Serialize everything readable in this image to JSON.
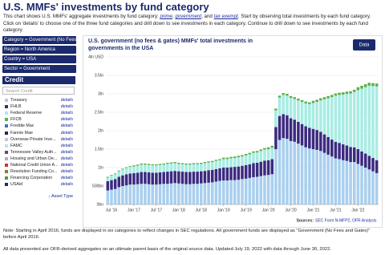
{
  "header": {
    "title": "U.S. MMFs' investments by fund category",
    "intro": [
      "This chart shows U.S. MMFs' aggregate investments by fund category: ",
      "prime",
      ", ",
      "government",
      ", and ",
      "tax exempt",
      ". Start by observing total investments by each fund category. Click on 'details' to choose one of the three fund categories and drill down to see investments in each category. Continue to drill down to see investments by each fund category."
    ]
  },
  "filters": [
    "Category = Government (No Fees and Gates)",
    "Region = North America",
    "Country = USA",
    "Sector = Government"
  ],
  "panel": {
    "title": "Credit",
    "search": "Search Credit",
    "footer": "↓ Asset Type",
    "items": [
      {
        "label": "Treasury",
        "link": "details",
        "color": "#a9cfee"
      },
      {
        "label": "FHLB",
        "link": "details",
        "color": "#3b2a80"
      },
      {
        "label": "Federal Reserve",
        "link": "details",
        "color": "#a8ece4"
      },
      {
        "label": "FFCB",
        "link": "details",
        "color": "#5bb04a"
      },
      {
        "label": "Freddie Mac",
        "link": "details",
        "color": "#3d6fc4"
      },
      {
        "label": "Fannie Mae",
        "link": "details",
        "color": "#1d2a5a"
      },
      {
        "label": "Overseas Private Inve...",
        "link": "details",
        "color": "#c9c9c9"
      },
      {
        "label": "FAMC",
        "link": "details",
        "color": "#bfe0f5"
      },
      {
        "label": "Tennessee Valley Auth...",
        "link": "details",
        "color": "#7a3a8a"
      },
      {
        "label": "Housing and Urban De...",
        "link": "details",
        "color": "#b8a8d8"
      },
      {
        "label": "National Credit Union A...",
        "link": "details",
        "color": "#d03030"
      },
      {
        "label": "Resolution Funding Co...",
        "link": "details",
        "color": "#8a7a2a"
      },
      {
        "label": "Financing Corporation",
        "link": "details",
        "color": "#4a9a4a"
      },
      {
        "label": "USAid",
        "link": "details",
        "color": "#1a2a80"
      }
    ]
  },
  "chart_data": {
    "type": "stacked-bar",
    "title": "U.S. government (no fees & gates) MMFs' total investments in governments in the USA",
    "button": "Data",
    "sources_label": "Sources:",
    "sources": "SEC Form N-MFP2, OFR Analysis",
    "categories": [
      null,
      "Jul '16",
      null,
      null,
      null,
      null,
      null,
      "Jan '17",
      null,
      null,
      null,
      null,
      null,
      "Jul '17",
      null,
      null,
      null,
      null,
      null,
      "Jan '18",
      null,
      null,
      null,
      null,
      null,
      "Jul '18",
      null,
      null,
      null,
      null,
      null,
      "Jan '19",
      null,
      null,
      null,
      null,
      null,
      "Jul '19",
      null,
      null,
      null,
      null,
      null,
      "Jan '20",
      null,
      null,
      null,
      null,
      null,
      "Jul '20",
      null,
      null,
      null,
      null,
      null,
      "Jan '21",
      null,
      null,
      null,
      null,
      null,
      "Jul '21",
      null,
      null,
      null,
      null,
      null,
      "Jan '22",
      null,
      null,
      null,
      null,
      null
    ],
    "ylim": [
      0,
      4000
    ],
    "yticks": [
      {
        "value": 0,
        "label": "0bn"
      },
      {
        "value": 500,
        "label": "500bn"
      },
      {
        "value": 1000,
        "label": "1tn"
      },
      {
        "value": 1500,
        "label": "1.5tn"
      },
      {
        "value": 2000,
        "label": "2tn"
      },
      {
        "value": 2500,
        "label": "2.5tn"
      },
      {
        "value": 3000,
        "label": "3tn"
      },
      {
        "value": 3500,
        "label": "3.5tn"
      },
      {
        "value": 4000,
        "label": "4tn USD"
      }
    ],
    "grid": true,
    "series": [
      {
        "name": "Treasury",
        "color": "#a9cfee",
        "values": [
          380,
          400,
          420,
          470,
          500,
          520,
          540,
          540,
          550,
          560,
          560,
          550,
          540,
          540,
          550,
          560,
          560,
          570,
          580,
          570,
          560,
          550,
          550,
          560,
          560,
          570,
          580,
          590,
          600,
          620,
          640,
          650,
          650,
          660,
          660,
          670,
          690,
          700,
          720,
          740,
          750,
          770,
          790,
          800,
          820,
          1500,
          1750,
          1800,
          1780,
          1720,
          1700,
          1650,
          1600,
          1550,
          1520,
          1500,
          1480,
          1450,
          1400,
          1350,
          1300,
          1250,
          1230,
          1200,
          1180,
          1150,
          1150,
          1100,
          1050,
          1000,
          950,
          900,
          850
        ]
      },
      {
        "name": "FHLB",
        "color": "#3b2a80",
        "values": [
          250,
          260,
          270,
          280,
          290,
          300,
          300,
          310,
          310,
          320,
          320,
          320,
          320,
          320,
          320,
          320,
          330,
          330,
          330,
          330,
          330,
          330,
          330,
          330,
          330,
          330,
          330,
          340,
          340,
          340,
          340,
          350,
          350,
          350,
          360,
          360,
          360,
          370,
          370,
          380,
          380,
          390,
          400,
          400,
          410,
          600,
          650,
          650,
          640,
          620,
          600,
          590,
          580,
          570,
          560,
          550,
          540,
          520,
          500,
          480,
          460,
          450,
          440,
          430,
          420,
          410,
          400,
          400,
          390,
          380,
          370,
          360,
          350
        ]
      },
      {
        "name": "Federal Reserve",
        "color": "#a8ece4",
        "values": [
          100,
          120,
          130,
          150,
          160,
          170,
          180,
          180,
          190,
          200,
          200,
          200,
          200,
          200,
          200,
          200,
          210,
          210,
          210,
          200,
          200,
          200,
          200,
          200,
          200,
          200,
          210,
          210,
          210,
          220,
          220,
          230,
          230,
          240,
          240,
          250,
          250,
          260,
          270,
          280,
          280,
          290,
          300,
          300,
          310,
          450,
          500,
          520,
          530,
          550,
          560,
          580,
          600,
          620,
          640,
          700,
          760,
          850,
          950,
          1050,
          1150,
          1250,
          1300,
          1350,
          1400,
          1450,
          1500,
          1600,
          1700,
          1800,
          1900,
          1950,
          2000
        ]
      },
      {
        "name": "FFCB",
        "color": "#5bb04a",
        "values": [
          20,
          20,
          20,
          20,
          20,
          20,
          20,
          30,
          30,
          30,
          30,
          30,
          30,
          30,
          30,
          30,
          30,
          30,
          30,
          30,
          30,
          30,
          30,
          30,
          30,
          30,
          30,
          30,
          30,
          30,
          30,
          40,
          40,
          40,
          40,
          40,
          40,
          40,
          40,
          40,
          40,
          40,
          40,
          50,
          50,
          50,
          50,
          50,
          50,
          50,
          50,
          50,
          50,
          50,
          50,
          60,
          60,
          60,
          60,
          60,
          60,
          60,
          60,
          60,
          60,
          60,
          60,
          80,
          80,
          80,
          80,
          80,
          80
        ]
      }
    ]
  },
  "notes": [
    "Note: Starting in April 2016, funds are displayed in six categories to reflect changes in SEC regulations. All government funds are displayed as \"Government (No Fees and Gates)\" before April 2016.",
    "All data presented are OFR-derived aggregates on an ultimate parent basis of the original source data. Updated July 19, 2022 with data through June 30, 2022."
  ]
}
